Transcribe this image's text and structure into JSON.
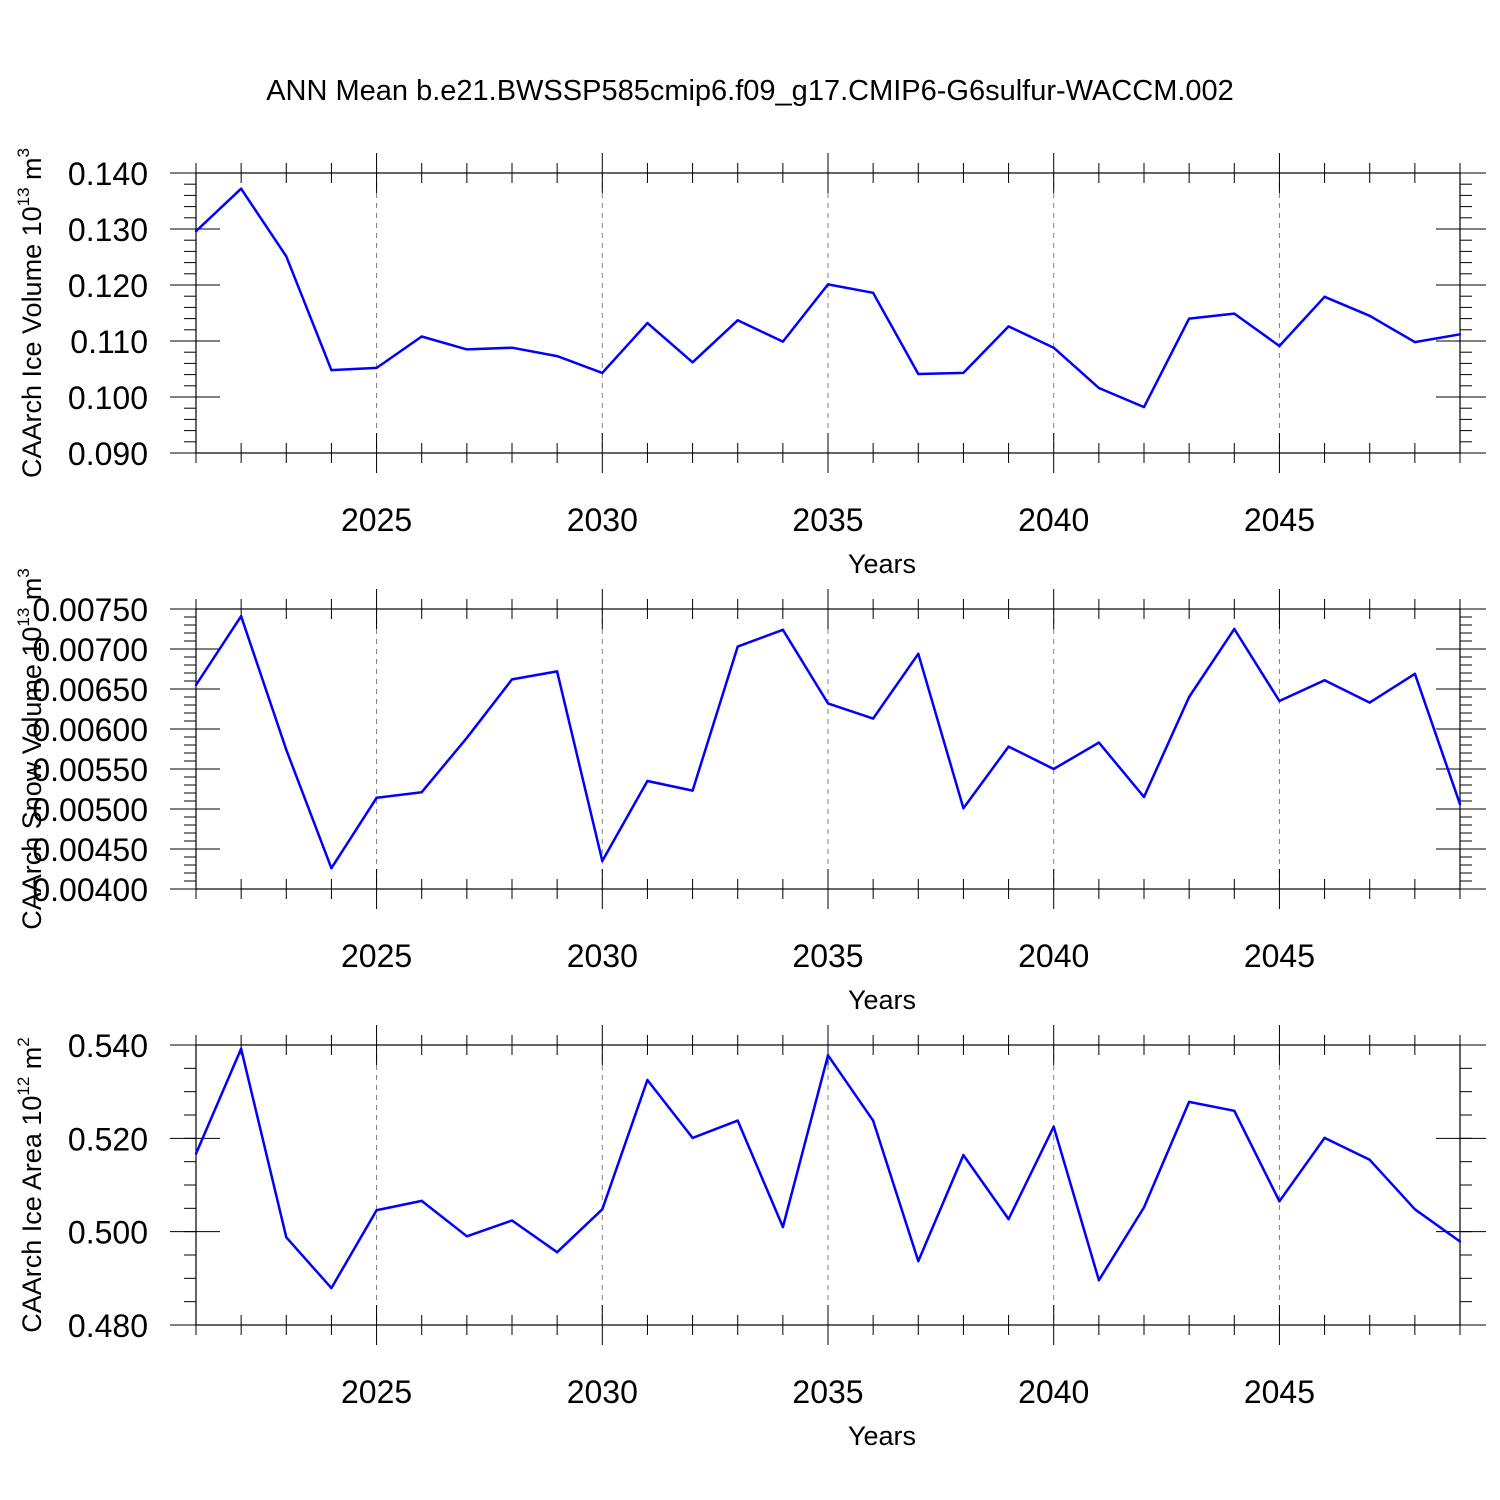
{
  "figure_title": "ANN Mean b.e21.BWSSP585cmip6.f09_g17.CMIP6-G6sulfur-WACCM.002",
  "colors": {
    "line": "#0000ff",
    "axis": "#000000",
    "grid": "#808080"
  },
  "chart_data": [
    {
      "type": "line",
      "id": "ice-volume",
      "ylabel": "CAArch Ice Volume 10",
      "ylabel_exp": "13",
      "ylabel_unit": " m",
      "ylabel_unit_exp": "3",
      "xlabel": "Years",
      "xlim": [
        2021,
        2049
      ],
      "ylim": [
        0.09,
        0.14
      ],
      "grid": "dashed vertical at major x ticks",
      "x_major_ticks": [
        2025,
        2030,
        2035,
        2040,
        2045
      ],
      "x_tick_labels": [
        "2025",
        "2030",
        "2035",
        "2040",
        "2045"
      ],
      "y_major_ticks": [
        0.09,
        0.1,
        0.11,
        0.12,
        0.13,
        0.14
      ],
      "y_tick_labels": [
        "0.090",
        "0.100",
        "0.110",
        "0.120",
        "0.130",
        "0.140"
      ],
      "y_minor_step": 0.002,
      "series": [
        {
          "name": "CAArch Ice Volume",
          "x": [
            2021,
            2022,
            2023,
            2024,
            2025,
            2026,
            2027,
            2028,
            2029,
            2030,
            2031,
            2032,
            2033,
            2034,
            2035,
            2036,
            2037,
            2038,
            2039,
            2040,
            2041,
            2042,
            2043,
            2044,
            2045,
            2046,
            2047,
            2048,
            2049
          ],
          "values": [
            0.1296,
            0.1372,
            0.1251,
            0.1048,
            0.1052,
            0.1108,
            0.1085,
            0.1088,
            0.1073,
            0.1043,
            0.1132,
            0.1062,
            0.1137,
            0.1099,
            0.1201,
            0.1186,
            0.1041,
            0.1043,
            0.1126,
            0.1088,
            0.1016,
            0.0982,
            0.114,
            0.1149,
            0.1091,
            0.1179,
            0.1145,
            0.1098,
            0.1112
          ]
        }
      ]
    },
    {
      "type": "line",
      "id": "snow-volume",
      "ylabel": "CAArch Snow Volume 10",
      "ylabel_exp": "13",
      "ylabel_unit": " m",
      "ylabel_unit_exp": "3",
      "xlabel": "Years",
      "xlim": [
        2021,
        2049
      ],
      "ylim": [
        0.004,
        0.0075
      ],
      "grid": "dashed vertical at major x ticks",
      "x_major_ticks": [
        2025,
        2030,
        2035,
        2040,
        2045
      ],
      "x_tick_labels": [
        "2025",
        "2030",
        "2035",
        "2040",
        "2045"
      ],
      "y_major_ticks": [
        0.004,
        0.0045,
        0.005,
        0.0055,
        0.006,
        0.0065,
        0.007,
        0.0075
      ],
      "y_tick_labels": [
        "0.00400",
        "0.00450",
        "0.00500",
        "0.00550",
        "0.00600",
        "0.00650",
        "0.00700",
        "0.00750"
      ],
      "y_minor_step": 0.0001,
      "series": [
        {
          "name": "CAArch Snow Volume",
          "x": [
            2021,
            2022,
            2023,
            2024,
            2025,
            2026,
            2027,
            2028,
            2029,
            2030,
            2031,
            2032,
            2033,
            2034,
            2035,
            2036,
            2037,
            2038,
            2039,
            2040,
            2041,
            2042,
            2043,
            2044,
            2045,
            2046,
            2047,
            2048,
            2049
          ],
          "values": [
            0.00655,
            0.00741,
            0.00574,
            0.00426,
            0.00514,
            0.00521,
            0.00589,
            0.00662,
            0.00672,
            0.00435,
            0.00535,
            0.00523,
            0.00703,
            0.00724,
            0.00632,
            0.00613,
            0.00694,
            0.00501,
            0.00578,
            0.0055,
            0.00583,
            0.00515,
            0.0064,
            0.00725,
            0.00635,
            0.00661,
            0.00633,
            0.00669,
            0.00506
          ]
        }
      ]
    },
    {
      "type": "line",
      "id": "ice-area",
      "ylabel": "CAArch Ice Area 10",
      "ylabel_exp": "12",
      "ylabel_unit": " m",
      "ylabel_unit_exp": "2",
      "xlabel": "Years",
      "xlim": [
        2021,
        2049
      ],
      "ylim": [
        0.48,
        0.54
      ],
      "grid": "dashed vertical at major x ticks",
      "x_major_ticks": [
        2025,
        2030,
        2035,
        2040,
        2045
      ],
      "x_tick_labels": [
        "2025",
        "2030",
        "2035",
        "2040",
        "2045"
      ],
      "y_major_ticks": [
        0.48,
        0.5,
        0.52,
        0.54
      ],
      "y_tick_labels": [
        "0.480",
        "0.500",
        "0.520",
        "0.540"
      ],
      "y_minor_step": 0.005,
      "series": [
        {
          "name": "CAArch Ice Area",
          "x": [
            2021,
            2022,
            2023,
            2024,
            2025,
            2026,
            2027,
            2028,
            2029,
            2030,
            2031,
            2032,
            2033,
            2034,
            2035,
            2036,
            2037,
            2038,
            2039,
            2040,
            2041,
            2042,
            2043,
            2044,
            2045,
            2046,
            2047,
            2048,
            2049
          ],
          "values": [
            0.5167,
            0.5392,
            0.4988,
            0.4879,
            0.5046,
            0.5066,
            0.499,
            0.5024,
            0.4956,
            0.5048,
            0.5325,
            0.5201,
            0.5238,
            0.501,
            0.5378,
            0.5238,
            0.4937,
            0.5164,
            0.5027,
            0.5225,
            0.4896,
            0.5052,
            0.5278,
            0.5259,
            0.5065,
            0.5201,
            0.5154,
            0.5048,
            0.4979
          ]
        }
      ]
    }
  ]
}
